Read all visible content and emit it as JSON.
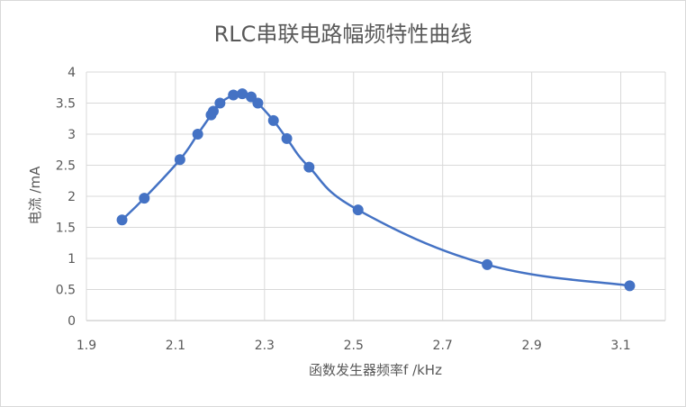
{
  "chart_data": {
    "type": "scatter",
    "title": "RLC串联电路幅频特性曲线",
    "xlabel": "函数发生器频率f /kHz",
    "ylabel": "电流 /mA",
    "xlim": [
      1.9,
      3.2
    ],
    "ylim": [
      0,
      4
    ],
    "x_ticks": [
      "1.9",
      "2.1",
      "2.3",
      "2.5",
      "2.7",
      "2.9",
      "3.1"
    ],
    "y_ticks": [
      "0",
      "0.5",
      "1",
      "1.5",
      "2",
      "2.5",
      "3",
      "3.5",
      "4"
    ],
    "grid": true,
    "smooth_line": true,
    "series": [
      {
        "color": "#4472c4",
        "points": [
          [
            1.98,
            1.62
          ],
          [
            2.03,
            1.97
          ],
          [
            2.11,
            2.59
          ],
          [
            2.15,
            3.0
          ],
          [
            2.18,
            3.31
          ],
          [
            2.185,
            3.37
          ],
          [
            2.2,
            3.5
          ],
          [
            2.23,
            3.63
          ],
          [
            2.25,
            3.65
          ],
          [
            2.27,
            3.6
          ],
          [
            2.285,
            3.5
          ],
          [
            2.32,
            3.22
          ],
          [
            2.35,
            2.93
          ],
          [
            2.4,
            2.47
          ],
          [
            2.51,
            1.78
          ],
          [
            2.8,
            0.9
          ],
          [
            3.12,
            0.56
          ]
        ]
      }
    ]
  }
}
